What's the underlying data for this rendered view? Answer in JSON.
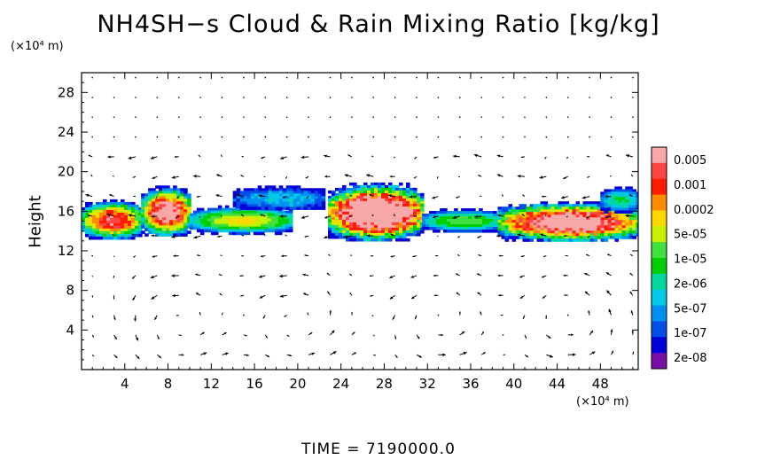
{
  "chart_data": {
    "type": "heatmap",
    "title": "NH4SH−s Cloud & Rain Mixing Ratio [kg/kg]",
    "ylabel": "Height",
    "x_unit": "(×10⁴ m)",
    "y_unit": "(×10⁴ m)",
    "footer": "TIME  =  7190000.0",
    "xlim": [
      0,
      51.5
    ],
    "ylim": [
      0,
      30
    ],
    "x_ticks": [
      "4",
      "8",
      "12",
      "16",
      "20",
      "24",
      "28",
      "32",
      "36",
      "40",
      "44",
      "48"
    ],
    "y_ticks": [
      "4",
      "8",
      "12",
      "16",
      "20",
      "24",
      "28"
    ],
    "colorbar": {
      "labels": [
        "0.005",
        "0.001",
        "0.0002",
        "5e-05",
        "1e-05",
        "2e-06",
        "5e-07",
        "1e-07",
        "2e-08"
      ],
      "colors": [
        "#f8a8a8",
        "#ff4444",
        "#ff1a00",
        "#ff8c00",
        "#ffd700",
        "#c8f000",
        "#40e040",
        "#00d000",
        "#00d8a0",
        "#00c8e8",
        "#0090f0",
        "#0050e8",
        "#0000d8",
        "#7a0fa8"
      ]
    },
    "cloud_layer": [
      {
        "x0": 0,
        "x1": 5.5,
        "ybot": 13.2,
        "ytop": 17.2,
        "peak": 0.7
      },
      {
        "x0": 5.5,
        "x1": 10,
        "ybot": 13.5,
        "ytop": 18.6,
        "peak": 0.8
      },
      {
        "x0": 10,
        "x1": 19.5,
        "ybot": 13.8,
        "ytop": 16.6,
        "peak": 0.5
      },
      {
        "x0": 14,
        "x1": 22.5,
        "ybot": 16.2,
        "ytop": 18.6,
        "peak": 0.2
      },
      {
        "x0": 22.8,
        "x1": 31.5,
        "ybot": 13.0,
        "ytop": 18.9,
        "peak": 0.95
      },
      {
        "x0": 31.5,
        "x1": 39,
        "ybot": 14.0,
        "ytop": 16.3,
        "peak": 0.4
      },
      {
        "x0": 38.5,
        "x1": 51.5,
        "ybot": 13.0,
        "ytop": 17.0,
        "peak": 0.85
      },
      {
        "x0": 48,
        "x1": 51.5,
        "ybot": 16.0,
        "ytop": 18.5,
        "peak": 0.3
      }
    ],
    "wind_field": "vector arrows on regular grid; convective cells near x = 9, 20, 33, 45"
  }
}
